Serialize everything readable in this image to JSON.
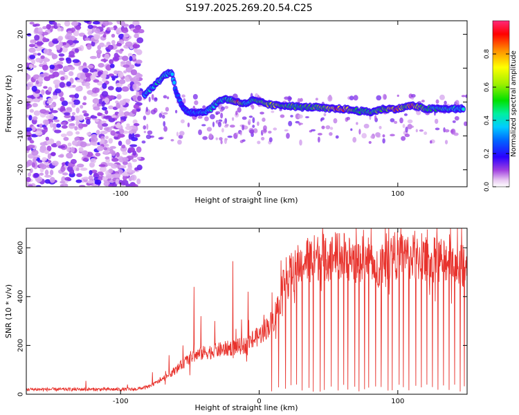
{
  "title": "S197.2025.269.20.54.C25",
  "chart_data": [
    {
      "type": "heatmap",
      "xlabel": "Height of straight line (km)",
      "ylabel": "Frequency (Hz)",
      "xlim": [
        -168,
        150
      ],
      "ylim": [
        -25,
        24
      ],
      "xticks": [
        -100,
        0,
        100
      ],
      "yticks": [
        -20,
        -10,
        0,
        10,
        20
      ],
      "colorbar": {
        "label": "Normalized spectral amplitude",
        "range": [
          0,
          1
        ],
        "ticks": [
          "0.0",
          "0.2",
          "0.4",
          "0.6",
          "0.8"
        ],
        "tick_values": [
          0.0,
          0.2,
          0.4,
          0.6,
          0.8
        ]
      },
      "ridge": {
        "x": [
          -83,
          -78,
          -73,
          -68,
          -63,
          -60,
          -55,
          -50,
          -45,
          -40,
          -35,
          -30,
          -25,
          -20,
          -15,
          -10,
          -5,
          0,
          10,
          20,
          30,
          40,
          50,
          55,
          60,
          70,
          80,
          85,
          90,
          100,
          105,
          110,
          120,
          130,
          140,
          148
        ],
        "freq": [
          2,
          4,
          6,
          8,
          9,
          3,
          -2,
          -3,
          -3,
          -3,
          -2,
          0,
          1,
          0.5,
          0,
          -0.5,
          0.5,
          0,
          -1,
          -1,
          -1.5,
          -1.5,
          -2,
          -2,
          -2,
          -2.5,
          -3,
          -2.5,
          -2,
          -2,
          -1.5,
          -1,
          -2,
          -2,
          -2,
          -2
        ],
        "amplitude": [
          0.4,
          0.4,
          0.45,
          0.45,
          0.45,
          0.3,
          0.3,
          0.35,
          0.35,
          0.4,
          0.45,
          0.5,
          0.5,
          0.55,
          0.95,
          0.45,
          0.5,
          0.6,
          0.7,
          0.6,
          0.55,
          0.6,
          0.7,
          0.95,
          0.9,
          0.6,
          0.55,
          0.6,
          0.65,
          0.9,
          0.65,
          0.9,
          0.55,
          0.5,
          0.45,
          0.4
        ]
      },
      "noise_region_x": [
        -168,
        -85
      ]
    },
    {
      "type": "line",
      "xlabel": "Height of straight line (km)",
      "ylabel": "SNR (10 * v/v)",
      "xlim": [
        -168,
        150
      ],
      "ylim": [
        0,
        680
      ],
      "xticks": [
        -100,
        0,
        100
      ],
      "yticks": [
        0,
        200,
        400,
        600
      ],
      "color": "#e8332d",
      "envelope": {
        "x": [
          -168,
          -140,
          -110,
          -90,
          -80,
          -70,
          -60,
          -50,
          -40,
          -30,
          -20,
          -10,
          0,
          10,
          15,
          20,
          25,
          30,
          40,
          50,
          60,
          70,
          80,
          85,
          90,
          100,
          110,
          120,
          130,
          140,
          150
        ],
        "snr": [
          20,
          20,
          20,
          20,
          30,
          60,
          100,
          150,
          170,
          180,
          190,
          200,
          240,
          300,
          390,
          470,
          510,
          540,
          560,
          560,
          570,
          550,
          560,
          520,
          560,
          570,
          560,
          550,
          550,
          560,
          520
        ]
      },
      "spikes": [
        {
          "x": -125,
          "snr": 55
        },
        {
          "x": -95,
          "snr": 40
        },
        {
          "x": -77,
          "snr": 90
        },
        {
          "x": -65,
          "snr": 160
        },
        {
          "x": -55,
          "snr": 200
        },
        {
          "x": -47,
          "snr": 440
        },
        {
          "x": -42,
          "snr": 320
        },
        {
          "x": -32,
          "snr": 300
        },
        {
          "x": -19,
          "snr": 545
        },
        {
          "x": -8,
          "snr": 420
        },
        {
          "x": 35,
          "snr": 640
        },
        {
          "x": 48,
          "snr": 640
        },
        {
          "x": 91,
          "snr": 680
        },
        {
          "x": 98,
          "snr": 620
        },
        {
          "x": 112,
          "snr": 620
        },
        {
          "x": 128,
          "snr": 610
        },
        {
          "x": 148,
          "snr": 530
        }
      ],
      "dropouts": [
        9,
        14,
        19,
        23,
        27,
        31,
        36,
        39,
        44,
        47,
        52,
        57,
        61,
        64,
        69,
        72,
        76,
        79,
        84,
        88,
        93,
        96,
        101,
        104,
        108,
        113,
        117,
        121,
        125,
        129,
        133,
        137,
        141,
        145,
        148
      ]
    }
  ]
}
